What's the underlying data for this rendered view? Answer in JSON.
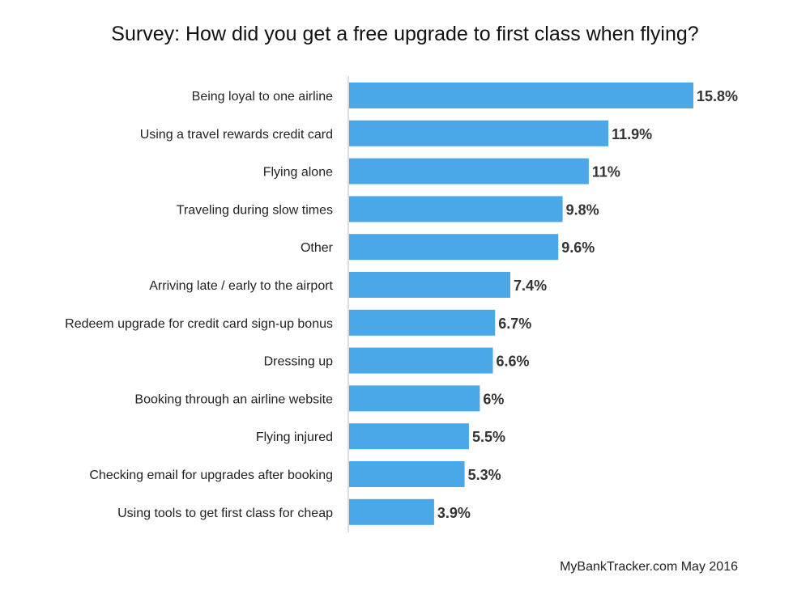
{
  "chart_data": {
    "type": "bar",
    "orientation": "horizontal",
    "title": "Survey: How did you get a free upgrade to first class when flying?",
    "categories": [
      "Being loyal to one airline",
      "Using a travel rewards credit card",
      "Flying alone",
      "Traveling during slow times",
      "Other",
      "Arriving late / early to the airport",
      "Redeem upgrade for credit card sign-up bonus",
      "Dressing up",
      "Booking through an airline website",
      "Flying injured",
      "Checking email for upgrades after booking",
      "Using tools to get first class for cheap"
    ],
    "values": [
      15.8,
      11.9,
      11,
      9.8,
      9.6,
      7.4,
      6.7,
      6.6,
      6,
      5.5,
      5.3,
      3.9
    ],
    "value_labels": [
      "15.8%",
      "11.9%",
      "11%",
      "9.8%",
      "9.6%",
      "7.4%",
      "6.7%",
      "6.6%",
      "6%",
      "5.5%",
      "5.3%",
      "3.9%"
    ],
    "xlim": [
      0,
      16
    ],
    "grid": false,
    "legend": "none",
    "bar_color": "#4aa8e8",
    "axis_color": "#bbbbbb",
    "source": "MyBankTracker.com May 2016"
  }
}
